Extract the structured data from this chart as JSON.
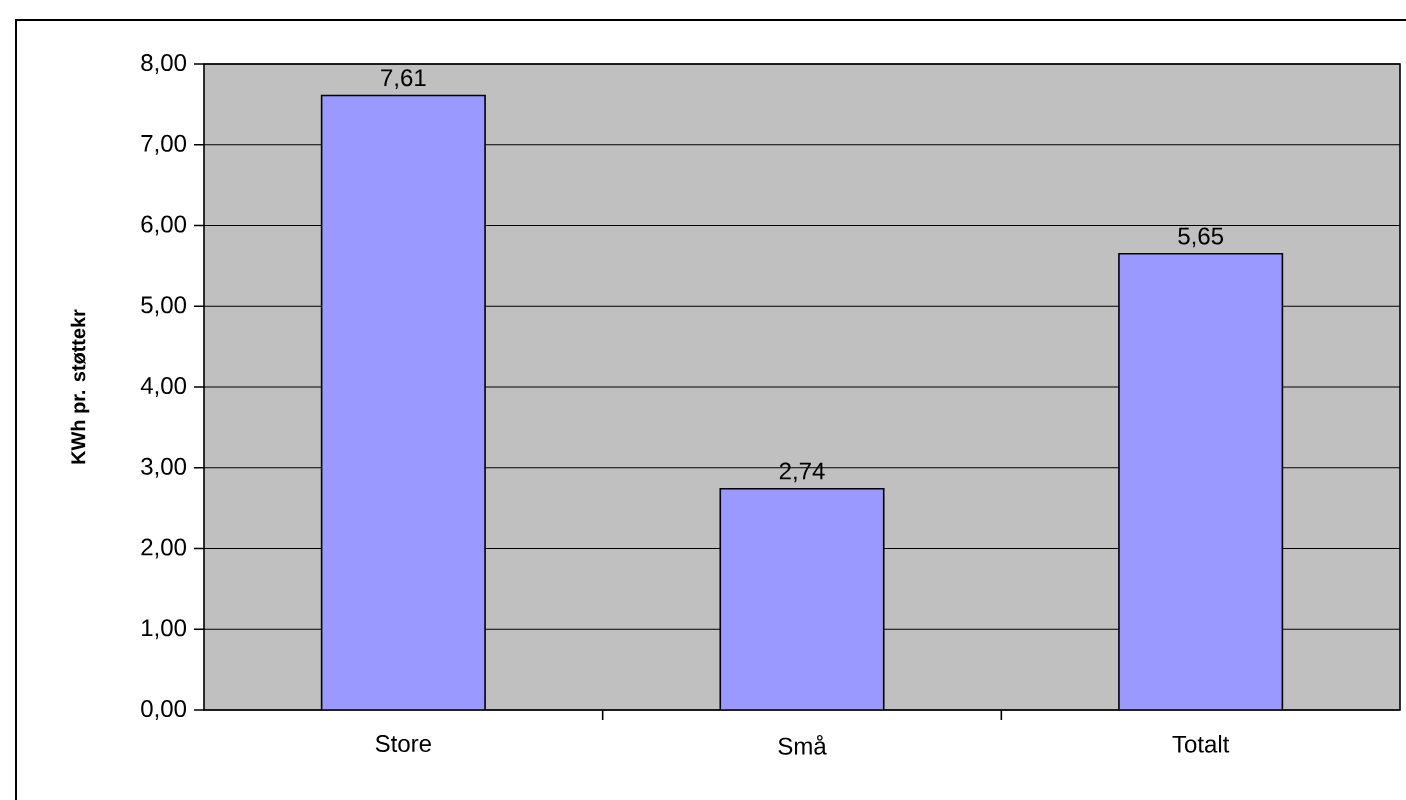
{
  "chart_data": {
    "type": "bar",
    "ylabel": "KWh pr. støttekr",
    "categories": [
      "Store",
      "Små",
      "Totalt"
    ],
    "values": [
      7.61,
      2.74,
      5.65
    ],
    "value_labels": [
      "7,61",
      "2,74",
      "5,65"
    ],
    "color": "#9999ff",
    "ylim": [
      0,
      8
    ],
    "yticks": [
      {
        "value": 0,
        "label": "0,00"
      },
      {
        "value": 1,
        "label": "1,00"
      },
      {
        "value": 2,
        "label": "2,00"
      },
      {
        "value": 3,
        "label": "3,00"
      },
      {
        "value": 4,
        "label": "4,00"
      },
      {
        "value": 5,
        "label": "5,00"
      },
      {
        "value": 6,
        "label": "6,00"
      },
      {
        "value": 7,
        "label": "7,00"
      },
      {
        "value": 8,
        "label": "8,00"
      }
    ],
    "grid": "y"
  }
}
